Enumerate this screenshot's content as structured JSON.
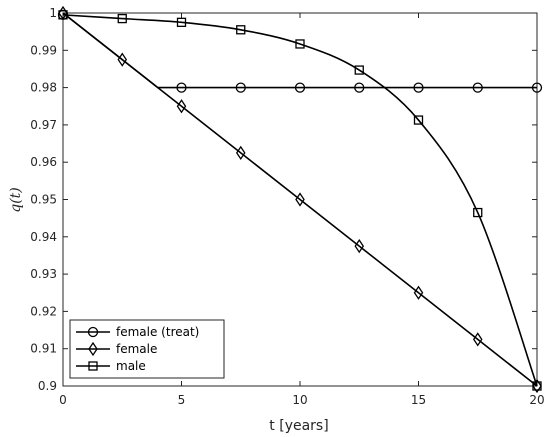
{
  "chart_data": {
    "type": "line",
    "xlabel": "t [years]",
    "ylabel": "q(t)",
    "xlim": [
      0,
      20
    ],
    "ylim": [
      0.9,
      1.0
    ],
    "xticks": [
      0,
      5,
      10,
      15,
      20
    ],
    "yticks": [
      0.9,
      0.91,
      0.92,
      0.93,
      0.94,
      0.95,
      0.96,
      0.97,
      0.98,
      0.99,
      1.0
    ],
    "xtick_labels": [
      "0",
      "5",
      "10",
      "15",
      "20"
    ],
    "ytick_labels": [
      "0.9",
      "0.91",
      "0.92",
      "0.93",
      "0.94",
      "0.95",
      "0.96",
      "0.97",
      "0.98",
      "0.99",
      "1"
    ],
    "grid": false,
    "legend_position": "bottom-left",
    "series": [
      {
        "name": "female (treat)",
        "marker": "circle",
        "color": "#000000",
        "x": [
          0,
          2.5,
          4,
          5,
          7.5,
          10,
          12.5,
          15,
          17.5,
          20
        ],
        "y": [
          1.0,
          0.9875,
          0.98,
          0.98,
          0.98,
          0.98,
          0.98,
          0.98,
          0.98,
          0.98
        ],
        "marker_x": [
          0,
          5,
          7.5,
          10,
          12.5,
          15,
          17.5,
          20
        ],
        "marker_y": [
          0.9995,
          0.98,
          0.98,
          0.98,
          0.98,
          0.98,
          0.98,
          0.98
        ]
      },
      {
        "name": "female",
        "marker": "diamond",
        "color": "#000000",
        "x": [
          0,
          2.5,
          5,
          7.5,
          10,
          12.5,
          15,
          17.5,
          20
        ],
        "y": [
          1.0,
          0.9875,
          0.975,
          0.9625,
          0.95,
          0.9375,
          0.925,
          0.9125,
          0.9
        ],
        "marker_x": [
          0,
          2.5,
          5,
          7.5,
          10,
          12.5,
          15,
          17.5,
          20
        ],
        "marker_y": [
          1.0,
          0.9875,
          0.975,
          0.9625,
          0.95,
          0.9375,
          0.925,
          0.9125,
          0.9
        ]
      },
      {
        "name": "male",
        "marker": "square",
        "color": "#000000",
        "x": [
          0,
          2.5,
          5,
          7.5,
          10,
          12.5,
          15,
          17.5,
          20
        ],
        "y": [
          0.9995,
          0.9985,
          0.9975,
          0.9955,
          0.9917,
          0.9847,
          0.9713,
          0.9465,
          0.9
        ],
        "marker_x": [
          0,
          2.5,
          5,
          7.5,
          10,
          12.5,
          15,
          17.5,
          20
        ],
        "marker_y": [
          0.9995,
          0.9985,
          0.9975,
          0.9955,
          0.9917,
          0.9847,
          0.9713,
          0.9465,
          0.9
        ]
      }
    ]
  }
}
